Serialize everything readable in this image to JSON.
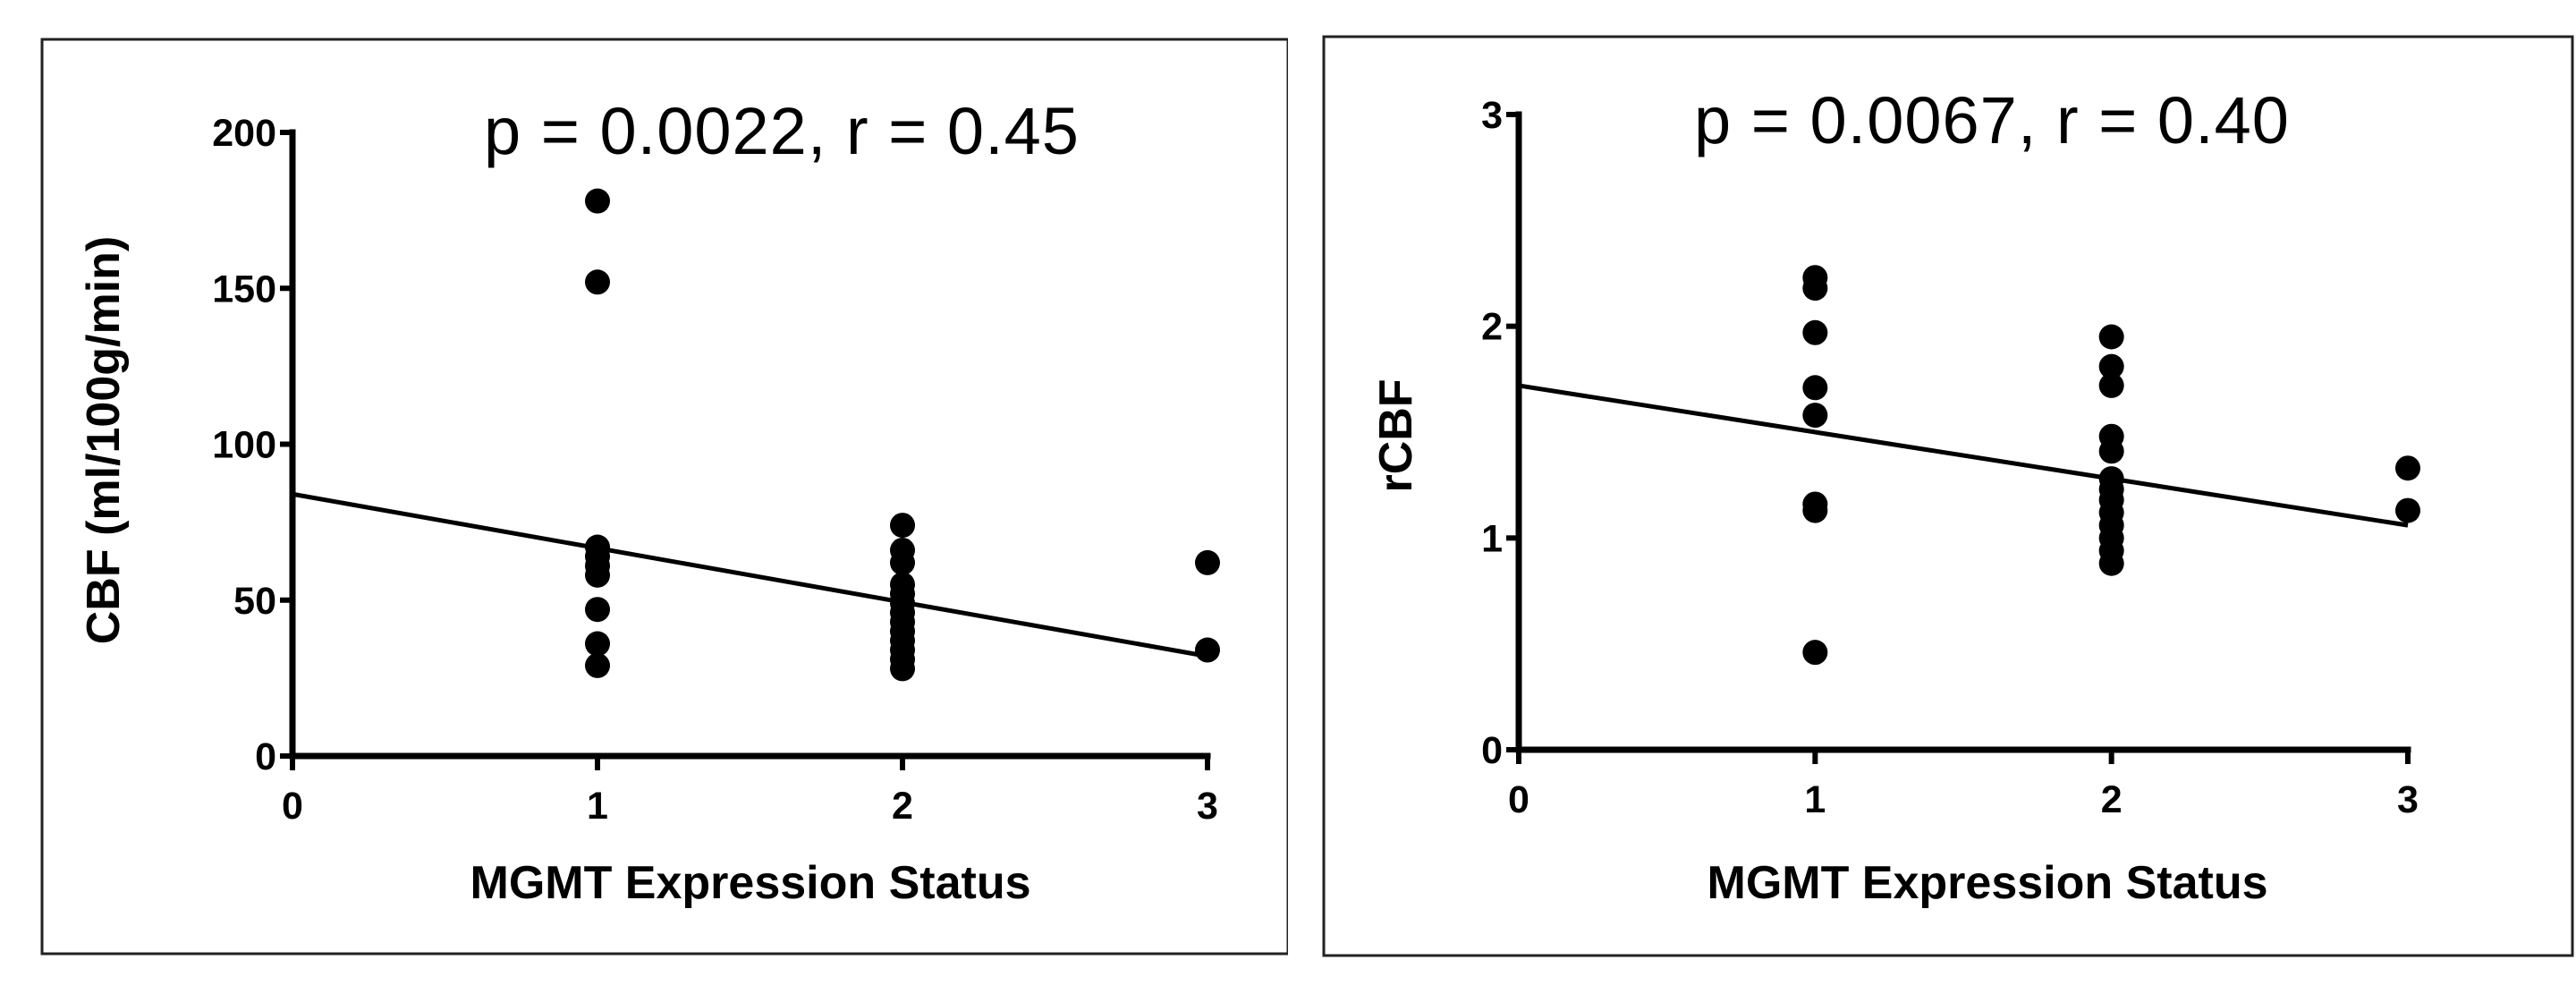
{
  "colors": {
    "points": "#000000",
    "axes": "#000000",
    "background": "#ffffff"
  },
  "chart_data": [
    {
      "type": "scatter",
      "annotation": "p = 0.0022, r = 0.45",
      "xlabel": "MGMT Expression Status",
      "ylabel": "CBF (ml/100g/min)",
      "xlim": [
        0,
        3
      ],
      "ylim": [
        0,
        200
      ],
      "x_ticks": [
        0,
        1,
        2,
        3
      ],
      "x_tick_labels": [
        "0",
        "1",
        "2",
        "3"
      ],
      "y_ticks": [
        0,
        50,
        100,
        150,
        200
      ],
      "y_tick_labels": [
        "0",
        "50",
        "100",
        "150",
        "200"
      ],
      "points": [
        {
          "x": 1,
          "y": 178
        },
        {
          "x": 1,
          "y": 152
        },
        {
          "x": 1,
          "y": 67
        },
        {
          "x": 1,
          "y": 64
        },
        {
          "x": 1,
          "y": 61
        },
        {
          "x": 1,
          "y": 58
        },
        {
          "x": 1,
          "y": 47
        },
        {
          "x": 1,
          "y": 36
        },
        {
          "x": 1,
          "y": 29
        },
        {
          "x": 2,
          "y": 74
        },
        {
          "x": 2,
          "y": 66
        },
        {
          "x": 2,
          "y": 62
        },
        {
          "x": 2,
          "y": 55
        },
        {
          "x": 2,
          "y": 52
        },
        {
          "x": 2,
          "y": 49
        },
        {
          "x": 2,
          "y": 46
        },
        {
          "x": 2,
          "y": 43
        },
        {
          "x": 2,
          "y": 40
        },
        {
          "x": 2,
          "y": 37
        },
        {
          "x": 2,
          "y": 34
        },
        {
          "x": 2,
          "y": 31
        },
        {
          "x": 2,
          "y": 28
        },
        {
          "x": 3,
          "y": 62
        },
        {
          "x": 3,
          "y": 34
        }
      ],
      "fit_line": {
        "x": [
          0,
          3
        ],
        "y": [
          84,
          32
        ]
      }
    },
    {
      "type": "scatter",
      "annotation": "p = 0.0067, r = 0.40",
      "xlabel": "MGMT Expression Status",
      "ylabel": "rCBF",
      "xlim": [
        0,
        3
      ],
      "ylim": [
        0,
        3
      ],
      "x_ticks": [
        0,
        1,
        2,
        3
      ],
      "x_tick_labels": [
        "0",
        "1",
        "2",
        "3"
      ],
      "y_ticks": [
        0,
        1,
        2,
        3
      ],
      "y_tick_labels": [
        "0",
        "1",
        "2",
        "3"
      ],
      "points": [
        {
          "x": 1,
          "y": 2.23
        },
        {
          "x": 1,
          "y": 2.18
        },
        {
          "x": 1,
          "y": 1.97
        },
        {
          "x": 1,
          "y": 1.71
        },
        {
          "x": 1,
          "y": 1.58
        },
        {
          "x": 1,
          "y": 1.16
        },
        {
          "x": 1,
          "y": 1.13
        },
        {
          "x": 1,
          "y": 0.46
        },
        {
          "x": 2,
          "y": 1.95
        },
        {
          "x": 2,
          "y": 1.81
        },
        {
          "x": 2,
          "y": 1.72
        },
        {
          "x": 2,
          "y": 1.48
        },
        {
          "x": 2,
          "y": 1.41
        },
        {
          "x": 2,
          "y": 1.28
        },
        {
          "x": 2,
          "y": 1.23
        },
        {
          "x": 2,
          "y": 1.18
        },
        {
          "x": 2,
          "y": 1.12
        },
        {
          "x": 2,
          "y": 1.06
        },
        {
          "x": 2,
          "y": 1.0
        },
        {
          "x": 2,
          "y": 0.94
        },
        {
          "x": 2,
          "y": 0.88
        },
        {
          "x": 3,
          "y": 1.33
        },
        {
          "x": 3,
          "y": 1.13
        }
      ],
      "fit_line": {
        "x": [
          0,
          3
        ],
        "y": [
          1.72,
          1.06
        ]
      }
    }
  ]
}
